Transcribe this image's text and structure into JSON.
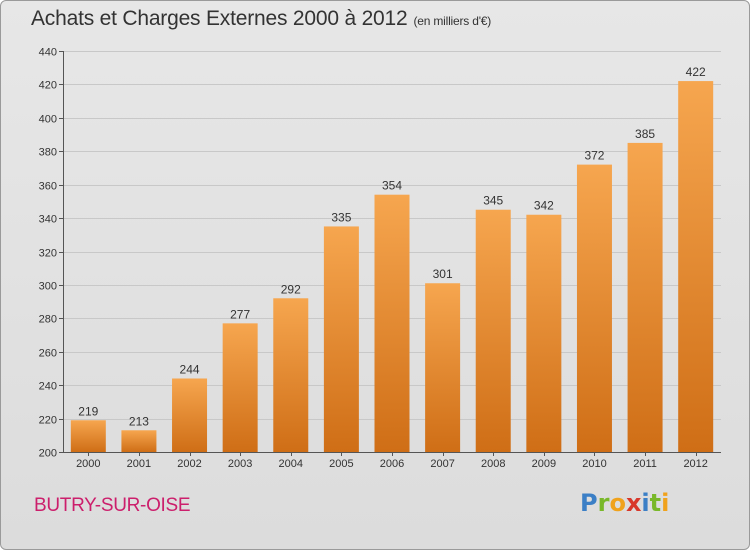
{
  "header": {
    "title": "Achats et Charges Externes 2000 à 2012",
    "unit": "(en milliers d'€)"
  },
  "footer": {
    "city": "BUTRY-SUR-OISE",
    "logo_letters": [
      {
        "ch": "P",
        "color": "#3b7fc6"
      },
      {
        "ch": "r",
        "color": "#79b829"
      },
      {
        "ch": "o",
        "color": "#f0a21c"
      },
      {
        "ch": "x",
        "color": "#d8382b"
      },
      {
        "ch": "i",
        "color": "#3b7fc6"
      },
      {
        "ch": "t",
        "color": "#79b829"
      },
      {
        "ch": "i",
        "color": "#f0a21c"
      }
    ]
  },
  "colors": {
    "bar_top": "#f6a64f",
    "bar_bottom": "#cf6e16",
    "grid": "#c8c8c8"
  },
  "chart_data": {
    "type": "bar",
    "title": "Achats et Charges Externes 2000 à 2012",
    "subtitle": "(en milliers d'€)",
    "categories": [
      "2000",
      "2001",
      "2002",
      "2003",
      "2004",
      "2005",
      "2006",
      "2007",
      "2008",
      "2009",
      "2010",
      "2011",
      "2012"
    ],
    "values": [
      219,
      213,
      244,
      277,
      292,
      335,
      354,
      301,
      345,
      342,
      372,
      385,
      422
    ],
    "ylim": [
      200,
      440
    ],
    "yticks": [
      200,
      220,
      240,
      260,
      280,
      300,
      320,
      340,
      360,
      380,
      400,
      420,
      440
    ],
    "grid": true,
    "xlabel": "",
    "ylabel": ""
  }
}
